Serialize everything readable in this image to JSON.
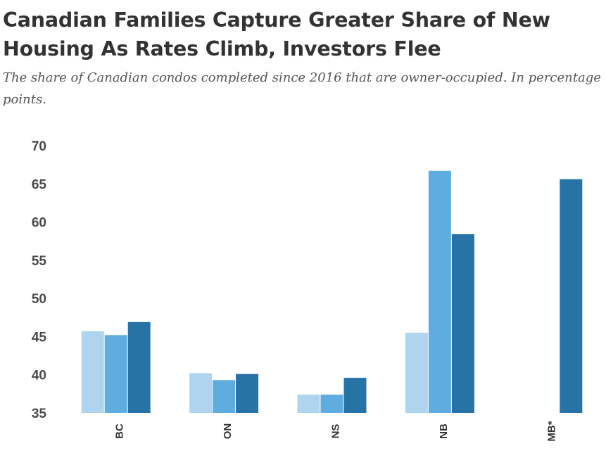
{
  "chart_data": {
    "type": "bar",
    "title": "Canadian Families Capture Greater Share of New Housing As Rates Climb, Investors Flee",
    "subtitle": "The share of Canadian condos completed since 2016 that are owner-occupied. In percentage points.",
    "categories": [
      "BC",
      "ON",
      "NS",
      "NB",
      "MB*"
    ],
    "series": [
      {
        "color": "#aed4f0",
        "values": [
          45.7,
          40.2,
          37.4,
          45.5,
          null
        ]
      },
      {
        "color": "#5fade0",
        "values": [
          45.2,
          39.3,
          37.4,
          66.7,
          null
        ]
      },
      {
        "color": "#2873a6",
        "values": [
          46.9,
          40.1,
          39.6,
          58.4,
          65.6
        ]
      }
    ],
    "ylim": [
      35,
      70
    ],
    "yticks": [
      35,
      40,
      45,
      50,
      55,
      60,
      65,
      70
    ],
    "xlabel": "",
    "ylabel": "",
    "grid": false,
    "legend": "none"
  }
}
